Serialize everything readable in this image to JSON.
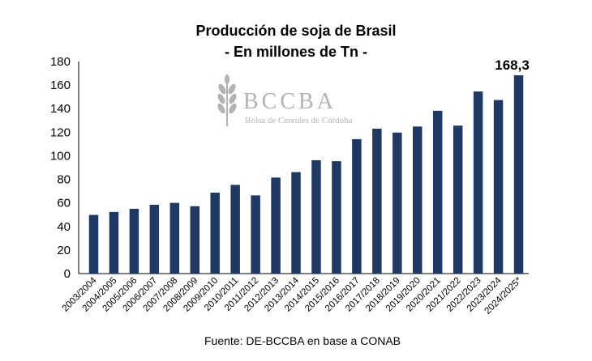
{
  "chart_data": {
    "type": "bar",
    "title": "Producción de soja de Brasil",
    "subtitle": "- En millones de Tn -",
    "categories": [
      "2003/2004",
      "2004/2005",
      "2005/2006",
      "2006/2007",
      "2007/2008",
      "2008/2009",
      "2009/2010",
      "2010/2011",
      "2011/2012",
      "2012/2013",
      "2013/2014",
      "2014/2015",
      "2015/2016",
      "2016/2017",
      "2017/2018",
      "2018/2019",
      "2019/2020",
      "2020/2021",
      "2021/2022",
      "2022/2023",
      "2023/2024",
      "2024/2025*"
    ],
    "values": [
      49.8,
      52.3,
      55.0,
      58.4,
      60.0,
      57.2,
      68.7,
      75.3,
      66.4,
      81.5,
      86.1,
      96.2,
      95.4,
      114.1,
      123.0,
      119.7,
      124.8,
      138.2,
      125.6,
      154.6,
      147.3,
      168.3
    ],
    "ylim": [
      0,
      180
    ],
    "yticks": [
      0,
      20,
      40,
      60,
      80,
      100,
      120,
      140,
      160,
      180
    ],
    "xlabel": "",
    "ylabel": "",
    "grid": false,
    "bar_color": "#1f3864",
    "data_labels": [
      {
        "category": "2024/2025*",
        "text": "168,3"
      }
    ],
    "source": "Fuente: DE-BCCBA en base a CONAB"
  },
  "watermark": {
    "name": "BCCBA",
    "subtitle": "Bolsa de Cereales de Córdoba",
    "icon": "wheat-icon",
    "color": "#9a9a9a"
  }
}
